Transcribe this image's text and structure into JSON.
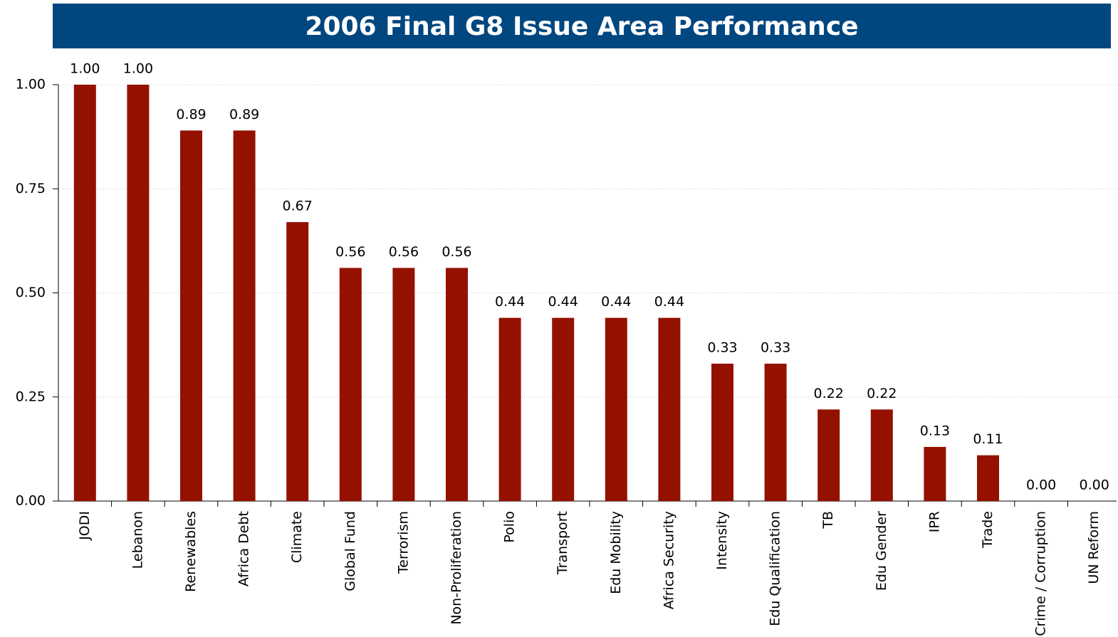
{
  "chart_data": {
    "type": "bar",
    "title": "2006 Final G8 Issue Area Performance",
    "categories": [
      "JODI",
      "Lebanon",
      "Renewables",
      "Africa Debt",
      "Climate",
      "Global Fund",
      "Terrorism",
      "Non-Proliferation",
      "Polio",
      "Transport",
      "Edu Mobility",
      "Africa Security",
      "Intensity",
      "Edu Qualification",
      "TB",
      "Edu Gender",
      "IPR",
      "Trade",
      "Crime / Corruption",
      "UN Reform"
    ],
    "values": [
      1,
      1,
      0.89,
      0.89,
      0.67,
      0.56,
      0.56,
      0.56,
      0.44,
      0.44,
      0.44,
      0.44,
      0.33,
      0.33,
      0.22,
      0.22,
      0.13,
      0.11,
      0,
      0
    ],
    "value_labels": [
      "1.00",
      "1.00",
      "0.89",
      "0.89",
      "0.67",
      "0.56",
      "0.56",
      "0.56",
      "0.44",
      "0.44",
      "0.44",
      "0.44",
      "0.33",
      "0.33",
      "0.22",
      "0.22",
      "0.13",
      "0.11",
      "0.00",
      "0.00"
    ],
    "color": "#941100",
    "ylim": [
      0,
      1
    ],
    "yticks": [
      {
        "value": 0,
        "label": "0.00"
      },
      {
        "value": 0.25,
        "label": "0.25"
      },
      {
        "value": 0.5,
        "label": "0.50"
      },
      {
        "value": 0.75,
        "label": "0.75"
      },
      {
        "value": 1,
        "label": "1.00"
      }
    ],
    "grid": true
  }
}
